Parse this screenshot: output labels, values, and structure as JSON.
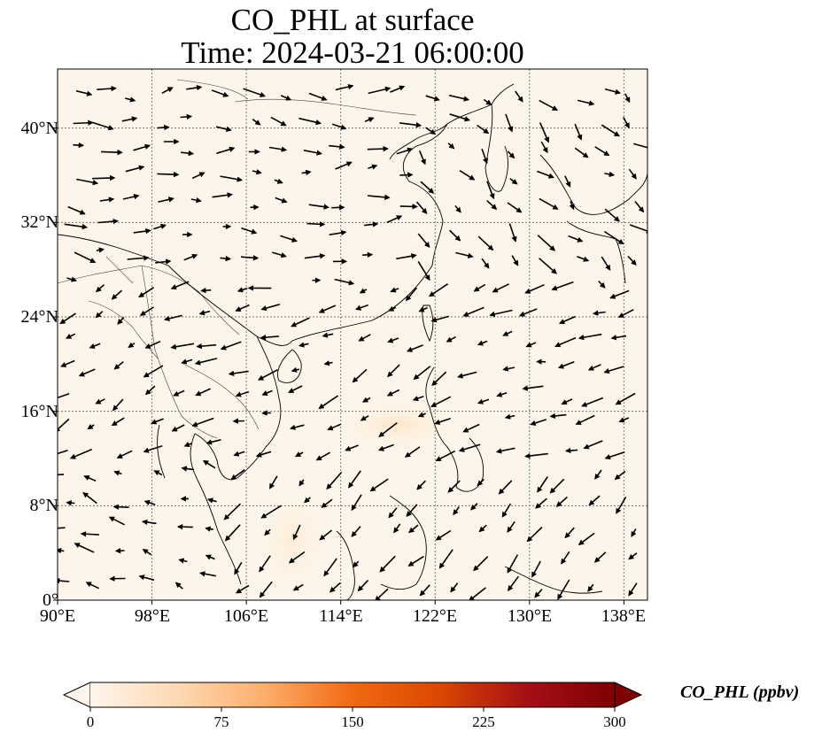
{
  "title": {
    "line1": "CO_PHL at surface",
    "line2": "Time: 2024-03-21 06:00:00"
  },
  "map": {
    "projection": "PlateCarree",
    "lon_range": [
      90,
      140
    ],
    "lat_range": [
      0,
      45
    ],
    "x_ticks": [
      "90°E",
      "98°E",
      "106°E",
      "114°E",
      "122°E",
      "130°E",
      "138°E"
    ],
    "y_ticks": [
      "0°",
      "8°N",
      "16°N",
      "24°N",
      "32°N",
      "40°N"
    ],
    "gridlines": true,
    "field_color": "#fdf5e9",
    "plume_color": "#fde6c6",
    "wind_arrows": "black quiver vectors"
  },
  "colorbar": {
    "label": "CO_PHL (ppbv)",
    "min": 0,
    "max": 300,
    "ticks": [
      "0",
      "75",
      "150",
      "225",
      "300"
    ],
    "colormap": [
      "#fff5eb",
      "#fdd9b3",
      "#fdae6b",
      "#f16913",
      "#d94801",
      "#a50f15",
      "#7f0000"
    ],
    "extend": "both"
  }
}
